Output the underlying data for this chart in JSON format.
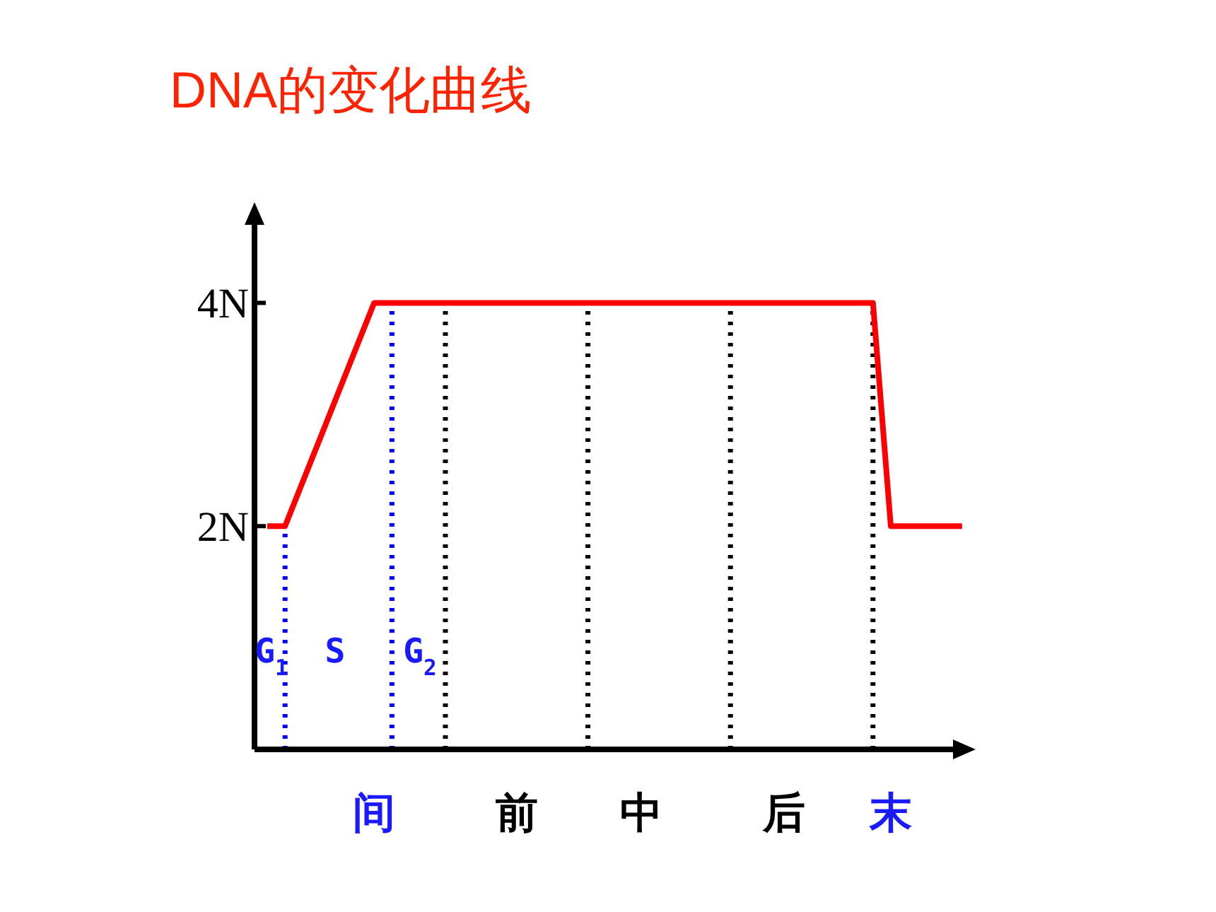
{
  "chart_data": {
    "type": "line",
    "title": "DNA的变化曲线",
    "categories": [
      null,
      null,
      null,
      null,
      null,
      null,
      "间",
      null,
      null,
      null,
      null,
      null,
      null,
      null,
      "前",
      null,
      null,
      null,
      null,
      null,
      null,
      "中",
      null,
      null,
      null,
      null,
      null,
      null,
      null,
      "后",
      null,
      null,
      null,
      null,
      null,
      "末",
      null,
      null,
      null,
      null
    ],
    "series": [
      {
        "color": "#ff0000",
        "values": [
          2,
          2,
          2.4,
          2.8,
          3.2,
          3.6,
          4,
          4,
          4,
          4,
          4,
          4,
          4,
          4,
          4,
          4,
          4,
          4,
          4,
          4,
          4,
          4,
          4,
          4,
          4,
          4,
          4,
          4,
          4,
          4,
          4,
          4,
          4,
          4,
          4,
          2,
          2,
          2,
          2,
          2
        ]
      }
    ],
    "ylim": [
      0,
      4.75
    ],
    "yticks": [
      {
        "value": 2,
        "label": "2N"
      },
      {
        "value": 4,
        "label": "4N"
      }
    ],
    "annotations": [
      "G$_{1}$",
      "S",
      "G$_{2}$"
    ],
    "grid": false,
    "marker": "none",
    "line_style": "solid"
  }
}
